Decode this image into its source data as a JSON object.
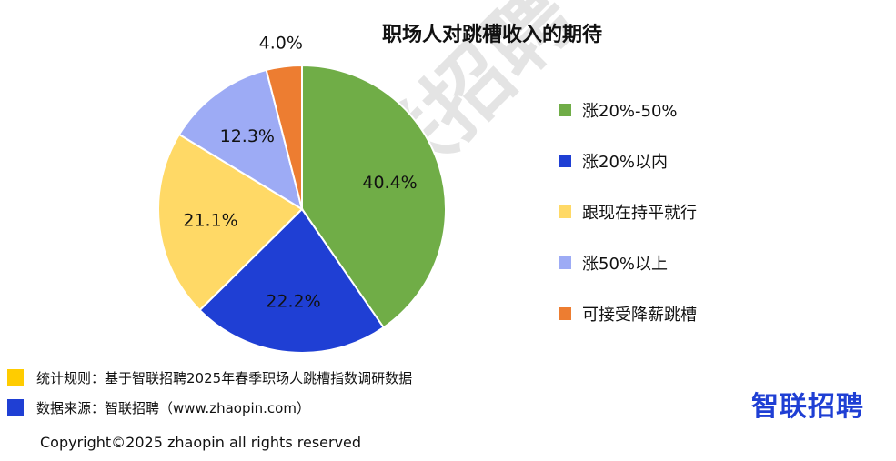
{
  "chart_data": {
    "type": "pie",
    "title": "职场人对跳槽收入的期待",
    "slices": [
      {
        "label": "涨20%-50%",
        "value": 40.4,
        "display": "40.4%",
        "color": "#70ad47"
      },
      {
        "label": "涨20%以内",
        "value": 22.2,
        "display": "22.2%",
        "color": "#1f3fd4"
      },
      {
        "label": "跟现在持平就行",
        "value": 21.1,
        "display": "21.1%",
        "color": "#ffd966"
      },
      {
        "label": "涨50%以上",
        "value": 12.3,
        "display": "12.3%",
        "color": "#9dabf5"
      },
      {
        "label": "可接受降薪跳槽",
        "value": 4.0,
        "display": "4.0%",
        "color": "#ed7d31"
      }
    ],
    "legend_position": "right"
  },
  "footer": {
    "rule_note": "统计规则：基于智联招聘2025年春季职场人跳槽指数调研数据",
    "rule_swatch_color": "#ffcc00",
    "source_note": "数据来源：智联招聘（www.zhaopin.com）",
    "source_swatch_color": "#1f3fd4",
    "copyright": "Copyright©2025 zhaopin all rights reserved"
  },
  "brand": {
    "logo_text": "智联招聘",
    "watermark_text": "智联招聘"
  }
}
